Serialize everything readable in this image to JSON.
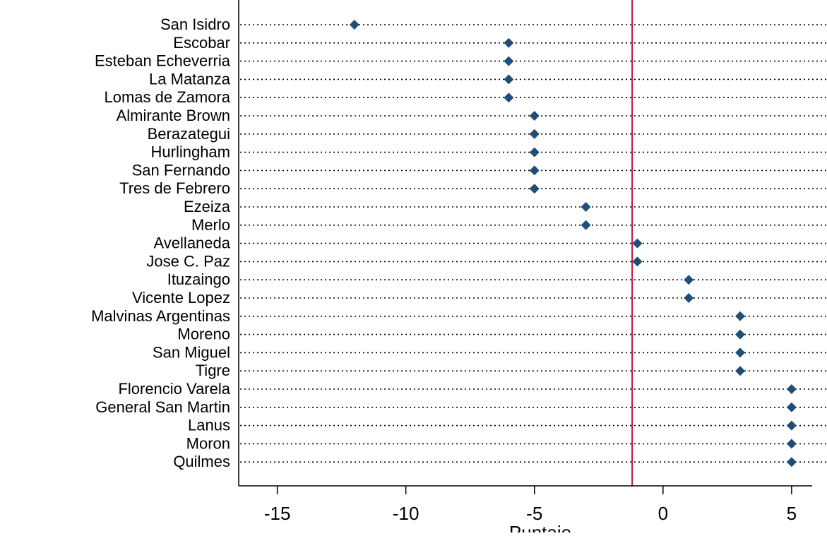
{
  "chart_data": {
    "type": "scatter",
    "xlabel": "Puntaje",
    "xlim": [
      -16.5,
      5.8
    ],
    "xticks": [
      -15,
      -10,
      -5,
      0,
      5
    ],
    "reference_line_x": -1.2,
    "grid": "dotted horizontal lines per category",
    "categories": [
      "San Isidro",
      "Escobar",
      "Esteban Echeverria",
      "La Matanza",
      "Lomas de Zamora",
      "Almirante Brown",
      "Berazategui",
      "Hurlingham",
      "San Fernando",
      "Tres de Febrero",
      "Ezeiza",
      "Merlo",
      "Avellaneda",
      "Jose C. Paz",
      "Ituzaingo",
      "Vicente Lopez",
      "Malvinas Argentinas",
      "Moreno",
      "San Miguel",
      "Tigre",
      "Florencio Varela",
      "General San Martin",
      "Lanus",
      "Moron",
      "Quilmes"
    ],
    "values": [
      -12,
      -6,
      -6,
      -6,
      -6,
      -5,
      -5,
      -5,
      -5,
      -5,
      -3,
      -3,
      -1,
      -1,
      1,
      1,
      3,
      3,
      3,
      3,
      5,
      5,
      5,
      5,
      5
    ],
    "colors": {
      "marker": "#1f4e79",
      "reference_line": "#c0143c",
      "axis": "#000000",
      "grid": "#000000"
    }
  }
}
